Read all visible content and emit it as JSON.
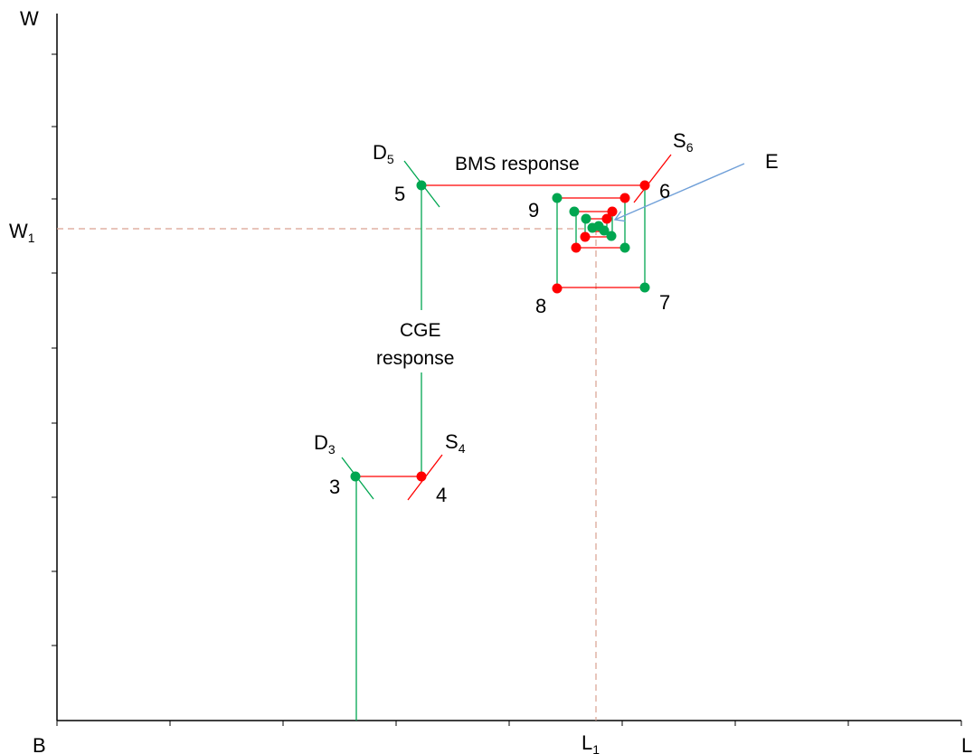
{
  "axes": {
    "y_label": "W",
    "x_label": "L",
    "origin_label": "B",
    "w1_label": "W",
    "w1_sub": "1",
    "l1_label": "L",
    "l1_sub": "1"
  },
  "annotations": {
    "bms": "BMS response",
    "cge_line1": "CGE",
    "cge_line2": "response",
    "equilibrium": "E",
    "d5_main": "D",
    "d5_sub": "5",
    "s6_main": "S",
    "s6_sub": "6",
    "d3_main": "D",
    "d3_sub": "3",
    "s4_main": "S",
    "s4_sub": "4"
  },
  "point_labels": {
    "p3": "3",
    "p4": "4",
    "p5": "5",
    "p6": "6",
    "p7": "7",
    "p8": "8",
    "p9": "9"
  },
  "colors": {
    "green": "#00a650",
    "red": "#ff0000",
    "dashed": "#d9a090",
    "arrow": "#6f9fd8",
    "axis": "#000000"
  }
}
